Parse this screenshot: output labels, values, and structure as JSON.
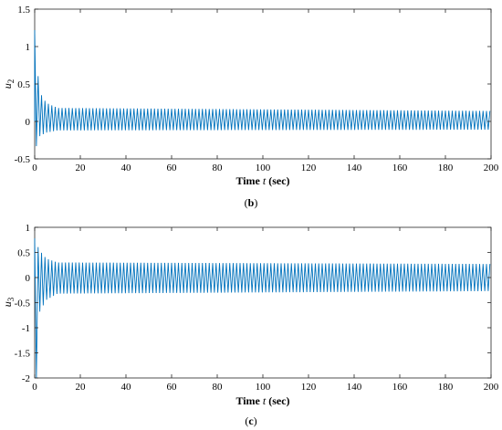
{
  "chart_data": [
    {
      "type": "line",
      "caption_letter": "b",
      "ylabel_main": "u",
      "ylabel_sub": "2",
      "xlabel_pre": "Time ",
      "xlabel_var": "t",
      "xlabel_post": " (sec)",
      "xlim": [
        0,
        200
      ],
      "ylim": [
        -0.5,
        1.5
      ],
      "xticks": [
        0,
        20,
        40,
        60,
        80,
        100,
        120,
        140,
        160,
        180,
        200
      ],
      "yticks": [
        -0.5,
        0,
        0.5,
        1,
        1.5
      ],
      "ytick_labels": [
        "-0.5",
        "0",
        "0.5",
        "1",
        "1.5"
      ],
      "grid": false,
      "color": "#0072BD",
      "series": [
        {
          "oscillation_period_s": 1.5,
          "initial_peak": 1.22,
          "initial_trough": -0.33,
          "envelope": [
            {
              "t": 0,
              "max": 1.22,
              "min": -0.33
            },
            {
              "t": 2,
              "max": 0.4,
              "min": -0.2
            },
            {
              "t": 5,
              "max": 0.25,
              "min": -0.15
            },
            {
              "t": 10,
              "max": 0.18,
              "min": -0.12
            },
            {
              "t": 200,
              "max": 0.14,
              "min": -0.11
            }
          ]
        }
      ]
    },
    {
      "type": "line",
      "caption_letter": "c",
      "ylabel_main": "u",
      "ylabel_sub": "3",
      "xlabel_pre": "Time ",
      "xlabel_var": "t",
      "xlabel_post": " (sec)",
      "xlim": [
        0,
        200
      ],
      "ylim": [
        -2,
        1
      ],
      "xticks": [
        0,
        20,
        40,
        60,
        80,
        100,
        120,
        140,
        160,
        180,
        200
      ],
      "yticks": [
        -2,
        -1.5,
        -1,
        -0.5,
        0,
        0.5,
        1
      ],
      "ytick_labels": [
        "-2",
        "-1.5",
        "-1",
        "-0.5",
        "0",
        "0.5",
        "1"
      ],
      "grid": false,
      "color": "#0072BD",
      "series": [
        {
          "oscillation_period_s": 1.5,
          "initial_peak": 0.78,
          "initial_trough": -2.0,
          "envelope": [
            {
              "t": 0,
              "max": 0.78,
              "min": -2.0
            },
            {
              "t": 2,
              "max": 0.55,
              "min": -0.7
            },
            {
              "t": 5,
              "max": 0.38,
              "min": -0.45
            },
            {
              "t": 10,
              "max": 0.3,
              "min": -0.32
            },
            {
              "t": 200,
              "max": 0.27,
              "min": -0.27
            }
          ]
        }
      ]
    }
  ]
}
